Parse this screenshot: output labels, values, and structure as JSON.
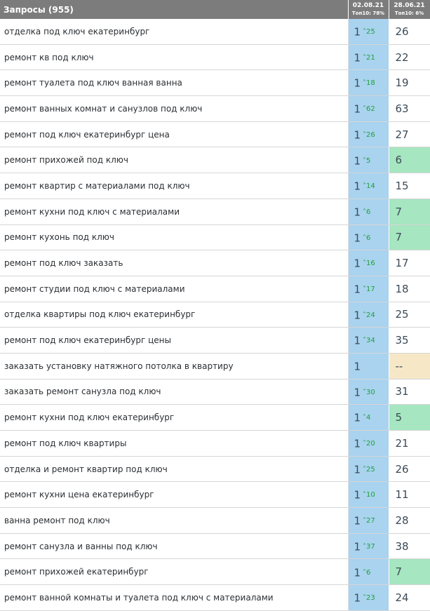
{
  "header": {
    "queries_label": "Запросы (955)",
    "col1_date": "02.08.21",
    "col1_top": "Топ10: 78%",
    "col2_date": "28.06.21",
    "col2_top": "Топ10: 6%"
  },
  "colors": {
    "header_bg": "#7c7c7c",
    "current_cell_bg": "#a9d3ef",
    "delta_green": "#21a03a",
    "highlight_green": "#a6e6c0",
    "highlight_yellow": "#f6e8c7"
  },
  "rows": [
    {
      "query": "отделка под ключ екатеринбург",
      "pos": "1",
      "delta": "25",
      "prev": "26",
      "hl": ""
    },
    {
      "query": "ремонт кв под ключ",
      "pos": "1",
      "delta": "21",
      "prev": "22",
      "hl": ""
    },
    {
      "query": "ремонт туалета под ключ ванная ванна",
      "pos": "1",
      "delta": "18",
      "prev": "19",
      "hl": ""
    },
    {
      "query": "ремонт ванных комнат и санузлов под ключ",
      "pos": "1",
      "delta": "62",
      "prev": "63",
      "hl": ""
    },
    {
      "query": "ремонт под ключ екатеринбург цена",
      "pos": "1",
      "delta": "26",
      "prev": "27",
      "hl": ""
    },
    {
      "query": "ремонт прихожей под ключ",
      "pos": "1",
      "delta": "5",
      "prev": "6",
      "hl": "green"
    },
    {
      "query": "ремонт квартир с материалами под ключ",
      "pos": "1",
      "delta": "14",
      "prev": "15",
      "hl": ""
    },
    {
      "query": "ремонт кухни под ключ с материалами",
      "pos": "1",
      "delta": "6",
      "prev": "7",
      "hl": "green"
    },
    {
      "query": "ремонт кухонь под ключ",
      "pos": "1",
      "delta": "6",
      "prev": "7",
      "hl": "green"
    },
    {
      "query": "ремонт под ключ заказать",
      "pos": "1",
      "delta": "16",
      "prev": "17",
      "hl": ""
    },
    {
      "query": "ремонт студии под ключ с материалами",
      "pos": "1",
      "delta": "17",
      "prev": "18",
      "hl": ""
    },
    {
      "query": "отделка квартиры под ключ екатеринбург",
      "pos": "1",
      "delta": "24",
      "prev": "25",
      "hl": ""
    },
    {
      "query": "ремонт под ключ екатеринбург цены",
      "pos": "1",
      "delta": "34",
      "prev": "35",
      "hl": ""
    },
    {
      "query": "заказать установку натяжного потолка в квартиру",
      "pos": "1",
      "delta": "",
      "prev": "--",
      "hl": "yellow"
    },
    {
      "query": "заказать ремонт санузла под ключ",
      "pos": "1",
      "delta": "30",
      "prev": "31",
      "hl": ""
    },
    {
      "query": "ремонт кухни под ключ екатеринбург",
      "pos": "1",
      "delta": "4",
      "prev": "5",
      "hl": "green"
    },
    {
      "query": "ремонт под ключ квартиры",
      "pos": "1",
      "delta": "20",
      "prev": "21",
      "hl": ""
    },
    {
      "query": "отделка и ремонт квартир под ключ",
      "pos": "1",
      "delta": "25",
      "prev": "26",
      "hl": ""
    },
    {
      "query": "ремонт кухни цена екатеринбург",
      "pos": "1",
      "delta": "10",
      "prev": "11",
      "hl": ""
    },
    {
      "query": "ванна ремонт под ключ",
      "pos": "1",
      "delta": "27",
      "prev": "28",
      "hl": ""
    },
    {
      "query": "ремонт санузла и ванны под ключ",
      "pos": "1",
      "delta": "37",
      "prev": "38",
      "hl": ""
    },
    {
      "query": "ремонт прихожей екатеринбург",
      "pos": "1",
      "delta": "6",
      "prev": "7",
      "hl": "green"
    },
    {
      "query": "ремонт ванной комнаты и туалета под ключ с материалами",
      "pos": "1",
      "delta": "23",
      "prev": "24",
      "hl": ""
    }
  ]
}
